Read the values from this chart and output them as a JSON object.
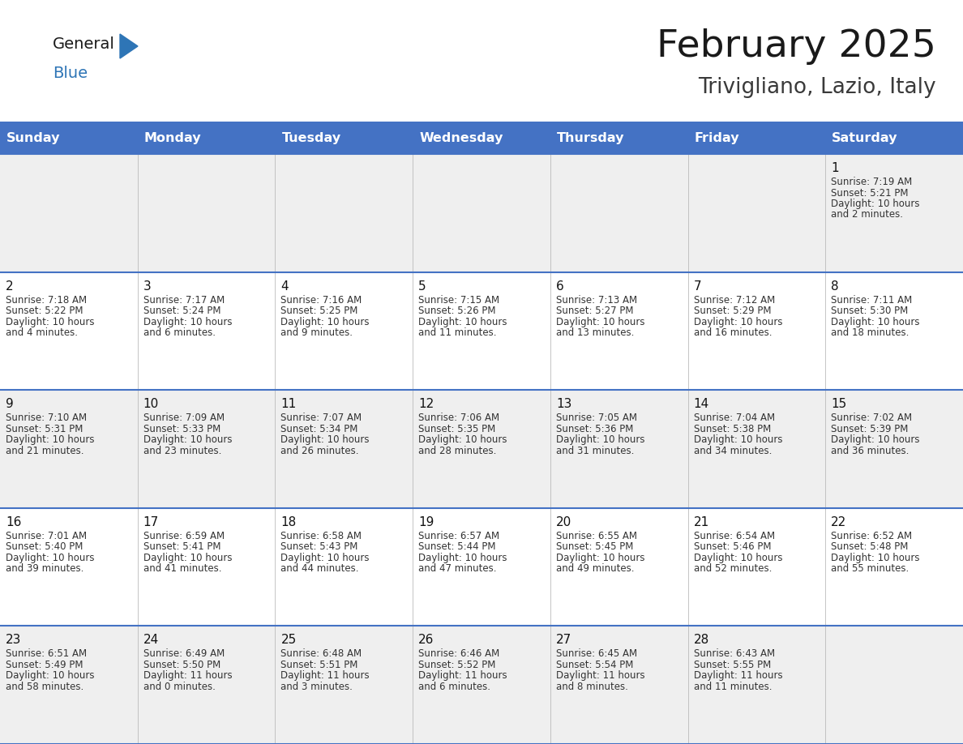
{
  "title": "February 2025",
  "subtitle": "Trivigliano, Lazio, Italy",
  "header_bg": "#4472C4",
  "header_text_color": "#FFFFFF",
  "header_font_size": 11.5,
  "day_names": [
    "Sunday",
    "Monday",
    "Tuesday",
    "Wednesday",
    "Thursday",
    "Friday",
    "Saturday"
  ],
  "title_font_size": 34,
  "subtitle_font_size": 19,
  "cell_bg_odd": "#EFEFEF",
  "cell_bg_even": "#FFFFFF",
  "line_color": "#4472C4",
  "date_font_size": 11,
  "info_font_size": 8.5,
  "logo_color_general": "#1a1a1a",
  "logo_color_blue": "#2E75B6",
  "logo_triangle_color": "#2E75B6",
  "logo_font_size": 14,
  "days_data": [
    {
      "day": 1,
      "col": 6,
      "row": 0,
      "sunrise": "7:19 AM",
      "sunset": "5:21 PM",
      "daylight_h": "10 hours",
      "daylight_m": "and 2 minutes."
    },
    {
      "day": 2,
      "col": 0,
      "row": 1,
      "sunrise": "7:18 AM",
      "sunset": "5:22 PM",
      "daylight_h": "10 hours",
      "daylight_m": "and 4 minutes."
    },
    {
      "day": 3,
      "col": 1,
      "row": 1,
      "sunrise": "7:17 AM",
      "sunset": "5:24 PM",
      "daylight_h": "10 hours",
      "daylight_m": "and 6 minutes."
    },
    {
      "day": 4,
      "col": 2,
      "row": 1,
      "sunrise": "7:16 AM",
      "sunset": "5:25 PM",
      "daylight_h": "10 hours",
      "daylight_m": "and 9 minutes."
    },
    {
      "day": 5,
      "col": 3,
      "row": 1,
      "sunrise": "7:15 AM",
      "sunset": "5:26 PM",
      "daylight_h": "10 hours",
      "daylight_m": "and 11 minutes."
    },
    {
      "day": 6,
      "col": 4,
      "row": 1,
      "sunrise": "7:13 AM",
      "sunset": "5:27 PM",
      "daylight_h": "10 hours",
      "daylight_m": "and 13 minutes."
    },
    {
      "day": 7,
      "col": 5,
      "row": 1,
      "sunrise": "7:12 AM",
      "sunset": "5:29 PM",
      "daylight_h": "10 hours",
      "daylight_m": "and 16 minutes."
    },
    {
      "day": 8,
      "col": 6,
      "row": 1,
      "sunrise": "7:11 AM",
      "sunset": "5:30 PM",
      "daylight_h": "10 hours",
      "daylight_m": "and 18 minutes."
    },
    {
      "day": 9,
      "col": 0,
      "row": 2,
      "sunrise": "7:10 AM",
      "sunset": "5:31 PM",
      "daylight_h": "10 hours",
      "daylight_m": "and 21 minutes."
    },
    {
      "day": 10,
      "col": 1,
      "row": 2,
      "sunrise": "7:09 AM",
      "sunset": "5:33 PM",
      "daylight_h": "10 hours",
      "daylight_m": "and 23 minutes."
    },
    {
      "day": 11,
      "col": 2,
      "row": 2,
      "sunrise": "7:07 AM",
      "sunset": "5:34 PM",
      "daylight_h": "10 hours",
      "daylight_m": "and 26 minutes."
    },
    {
      "day": 12,
      "col": 3,
      "row": 2,
      "sunrise": "7:06 AM",
      "sunset": "5:35 PM",
      "daylight_h": "10 hours",
      "daylight_m": "and 28 minutes."
    },
    {
      "day": 13,
      "col": 4,
      "row": 2,
      "sunrise": "7:05 AM",
      "sunset": "5:36 PM",
      "daylight_h": "10 hours",
      "daylight_m": "and 31 minutes."
    },
    {
      "day": 14,
      "col": 5,
      "row": 2,
      "sunrise": "7:04 AM",
      "sunset": "5:38 PM",
      "daylight_h": "10 hours",
      "daylight_m": "and 34 minutes."
    },
    {
      "day": 15,
      "col": 6,
      "row": 2,
      "sunrise": "7:02 AM",
      "sunset": "5:39 PM",
      "daylight_h": "10 hours",
      "daylight_m": "and 36 minutes."
    },
    {
      "day": 16,
      "col": 0,
      "row": 3,
      "sunrise": "7:01 AM",
      "sunset": "5:40 PM",
      "daylight_h": "10 hours",
      "daylight_m": "and 39 minutes."
    },
    {
      "day": 17,
      "col": 1,
      "row": 3,
      "sunrise": "6:59 AM",
      "sunset": "5:41 PM",
      "daylight_h": "10 hours",
      "daylight_m": "and 41 minutes."
    },
    {
      "day": 18,
      "col": 2,
      "row": 3,
      "sunrise": "6:58 AM",
      "sunset": "5:43 PM",
      "daylight_h": "10 hours",
      "daylight_m": "and 44 minutes."
    },
    {
      "day": 19,
      "col": 3,
      "row": 3,
      "sunrise": "6:57 AM",
      "sunset": "5:44 PM",
      "daylight_h": "10 hours",
      "daylight_m": "and 47 minutes."
    },
    {
      "day": 20,
      "col": 4,
      "row": 3,
      "sunrise": "6:55 AM",
      "sunset": "5:45 PM",
      "daylight_h": "10 hours",
      "daylight_m": "and 49 minutes."
    },
    {
      "day": 21,
      "col": 5,
      "row": 3,
      "sunrise": "6:54 AM",
      "sunset": "5:46 PM",
      "daylight_h": "10 hours",
      "daylight_m": "and 52 minutes."
    },
    {
      "day": 22,
      "col": 6,
      "row": 3,
      "sunrise": "6:52 AM",
      "sunset": "5:48 PM",
      "daylight_h": "10 hours",
      "daylight_m": "and 55 minutes."
    },
    {
      "day": 23,
      "col": 0,
      "row": 4,
      "sunrise": "6:51 AM",
      "sunset": "5:49 PM",
      "daylight_h": "10 hours",
      "daylight_m": "and 58 minutes."
    },
    {
      "day": 24,
      "col": 1,
      "row": 4,
      "sunrise": "6:49 AM",
      "sunset": "5:50 PM",
      "daylight_h": "11 hours",
      "daylight_m": "and 0 minutes."
    },
    {
      "day": 25,
      "col": 2,
      "row": 4,
      "sunrise": "6:48 AM",
      "sunset": "5:51 PM",
      "daylight_h": "11 hours",
      "daylight_m": "and 3 minutes."
    },
    {
      "day": 26,
      "col": 3,
      "row": 4,
      "sunrise": "6:46 AM",
      "sunset": "5:52 PM",
      "daylight_h": "11 hours",
      "daylight_m": "and 6 minutes."
    },
    {
      "day": 27,
      "col": 4,
      "row": 4,
      "sunrise": "6:45 AM",
      "sunset": "5:54 PM",
      "daylight_h": "11 hours",
      "daylight_m": "and 8 minutes."
    },
    {
      "day": 28,
      "col": 5,
      "row": 4,
      "sunrise": "6:43 AM",
      "sunset": "5:55 PM",
      "daylight_h": "11 hours",
      "daylight_m": "and 11 minutes."
    }
  ]
}
